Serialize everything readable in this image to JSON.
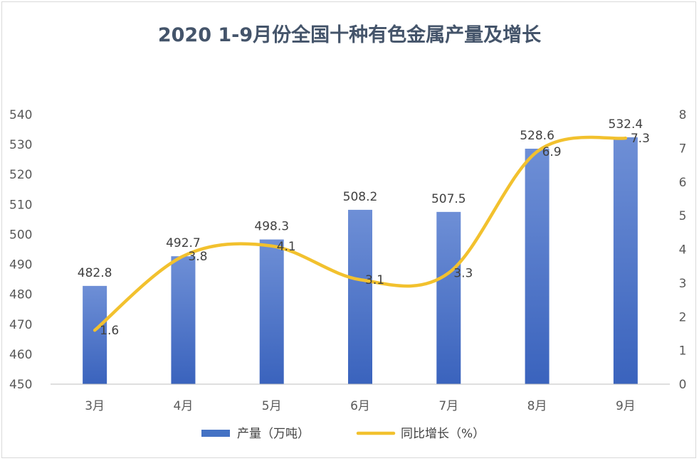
{
  "chart_data": {
    "type": "bar",
    "title": "2020 1-9月份全国十种有色金属产量及增长",
    "categories": [
      "3月",
      "4月",
      "5月",
      "6月",
      "7月",
      "8月",
      "9月"
    ],
    "series": [
      {
        "name": "产量（万吨）",
        "type": "bar",
        "axis": "left",
        "color": "#4472c4",
        "values": [
          482.8,
          492.7,
          498.3,
          508.2,
          507.5,
          528.6,
          532.4
        ],
        "labels": [
          "482.8",
          "492.7",
          "498.3",
          "508.2",
          "507.5",
          "528.6",
          "532.4"
        ]
      },
      {
        "name": "同比增长（%）",
        "type": "line",
        "smooth": true,
        "axis": "right",
        "color": "#f2c12e",
        "values": [
          1.6,
          3.8,
          4.1,
          3.1,
          3.3,
          6.9,
          7.3
        ],
        "labels": [
          "1.6",
          "3.8",
          "4.1",
          "3.1",
          "3.3",
          "6.9",
          "7.3"
        ]
      }
    ],
    "y_left": {
      "min": 450,
      "max": 540,
      "step": 10,
      "ticks": [
        "540",
        "530",
        "520",
        "510",
        "500",
        "490",
        "480",
        "470",
        "460",
        "450"
      ]
    },
    "y_right": {
      "min": 0,
      "max": 8,
      "step": 1,
      "ticks": [
        "8",
        "7",
        "6",
        "5",
        "4",
        "3",
        "2",
        "1",
        "0"
      ]
    },
    "grid": false,
    "legend": "bottom"
  }
}
